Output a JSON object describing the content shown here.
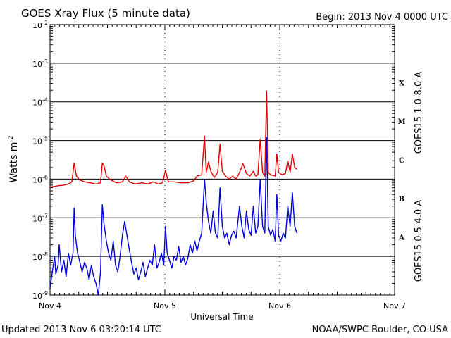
{
  "header": {
    "title": "GOES Xray Flux (5 minute data)",
    "begin": "Begin:  2013 Nov 4 0000 UTC"
  },
  "footer": {
    "updated": "Updated 2013 Nov  6 03:20:14 UTC",
    "source": "NOAA/SWPC Boulder, CO USA"
  },
  "chart_data": {
    "type": "line",
    "title": "GOES Xray Flux (5 minute data)",
    "xlabel": "Universal Time",
    "ylabel_base": "Watts m",
    "ylabel_exp": "-2",
    "y_scale": "log",
    "ylim": [
      1e-09,
      0.01
    ],
    "xlim": [
      0,
      3
    ],
    "x_ticks": [
      {
        "x": 0,
        "label": "Nov 4"
      },
      {
        "x": 1,
        "label": "Nov 5"
      },
      {
        "x": 2,
        "label": "Nov 6"
      },
      {
        "x": 3,
        "label": "Nov 7"
      }
    ],
    "y_ticks": [
      {
        "exp": -9,
        "base": "10",
        "sup": "-9"
      },
      {
        "exp": -8,
        "base": "10",
        "sup": "-8"
      },
      {
        "exp": -7,
        "base": "10",
        "sup": "-7"
      },
      {
        "exp": -6,
        "base": "10",
        "sup": "-6"
      },
      {
        "exp": -5,
        "base": "10",
        "sup": "-5"
      },
      {
        "exp": -4,
        "base": "10",
        "sup": "-4"
      },
      {
        "exp": -3,
        "base": "10",
        "sup": "-3"
      },
      {
        "exp": -2,
        "base": "10",
        "sup": "-2"
      }
    ],
    "grid": "horizontal lines at each decade",
    "flare_classes": [
      {
        "label": "A",
        "exp": -7.5
      },
      {
        "label": "B",
        "exp": -6.5
      },
      {
        "label": "C",
        "exp": -5.5
      },
      {
        "label": "M",
        "exp": -4.5
      },
      {
        "label": "X",
        "exp": -3.5
      }
    ],
    "series": [
      {
        "name": "GOES15 1.0-8.0 A",
        "color": "#e00000",
        "points": [
          [
            0.0,
            6.2e-07
          ],
          [
            0.04,
            6.5e-07
          ],
          [
            0.08,
            6.8e-07
          ],
          [
            0.12,
            7e-07
          ],
          [
            0.16,
            7.5e-07
          ],
          [
            0.19,
            8.5e-07
          ],
          [
            0.21,
            2.6e-06
          ],
          [
            0.23,
            1.2e-06
          ],
          [
            0.26,
            9.5e-07
          ],
          [
            0.3,
            8.5e-07
          ],
          [
            0.35,
            8e-07
          ],
          [
            0.4,
            7.5e-07
          ],
          [
            0.44,
            8e-07
          ],
          [
            0.455,
            2.6e-06
          ],
          [
            0.47,
            2.2e-06
          ],
          [
            0.49,
            1.2e-06
          ],
          [
            0.53,
            9.5e-07
          ],
          [
            0.58,
            8e-07
          ],
          [
            0.63,
            8.5e-07
          ],
          [
            0.66,
            1.2e-06
          ],
          [
            0.69,
            8.5e-07
          ],
          [
            0.74,
            7.5e-07
          ],
          [
            0.8,
            8e-07
          ],
          [
            0.85,
            7.5e-07
          ],
          [
            0.9,
            8.5e-07
          ],
          [
            0.94,
            7.5e-07
          ],
          [
            0.98,
            8e-07
          ],
          [
            1.005,
            1.7e-06
          ],
          [
            1.03,
            8.5e-07
          ],
          [
            1.08,
            8.5e-07
          ],
          [
            1.14,
            8e-07
          ],
          [
            1.2,
            8e-07
          ],
          [
            1.25,
            9e-07
          ],
          [
            1.28,
            1.2e-06
          ],
          [
            1.32,
            1.3e-06
          ],
          [
            1.345,
            1.3e-05
          ],
          [
            1.36,
            1.5e-06
          ],
          [
            1.38,
            2.8e-06
          ],
          [
            1.4,
            1.6e-06
          ],
          [
            1.43,
            1.1e-06
          ],
          [
            1.46,
            1.5e-06
          ],
          [
            1.48,
            8e-06
          ],
          [
            1.5,
            1.6e-06
          ],
          [
            1.53,
            1.2e-06
          ],
          [
            1.56,
            1e-06
          ],
          [
            1.59,
            1.2e-06
          ],
          [
            1.62,
            1e-06
          ],
          [
            1.65,
            1.5e-06
          ],
          [
            1.68,
            2.5e-06
          ],
          [
            1.71,
            1.4e-06
          ],
          [
            1.74,
            1.2e-06
          ],
          [
            1.77,
            1.6e-06
          ],
          [
            1.79,
            1.2e-06
          ],
          [
            1.81,
            1.3e-06
          ],
          [
            1.83,
            1.1e-05
          ],
          [
            1.85,
            1.5e-06
          ],
          [
            1.87,
            1.2e-06
          ],
          [
            1.885,
            0.00019
          ],
          [
            1.9,
            1.5e-06
          ],
          [
            1.92,
            1.3e-06
          ],
          [
            1.96,
            1.2e-06
          ],
          [
            1.975,
            4.5e-06
          ],
          [
            1.99,
            1.5e-06
          ],
          [
            2.02,
            1.3e-06
          ],
          [
            2.05,
            1.4e-06
          ],
          [
            2.07,
            3e-06
          ],
          [
            2.09,
            1.5e-06
          ],
          [
            2.11,
            4.5e-06
          ],
          [
            2.13,
            2e-06
          ],
          [
            2.15,
            1.8e-06
          ]
        ]
      },
      {
        "name": "GOES15 0.5-4.0 A",
        "color": "#0000d8",
        "points": [
          [
            0.0,
            1.5e-09
          ],
          [
            0.02,
            4e-09
          ],
          [
            0.04,
            1e-08
          ],
          [
            0.05,
            3.5e-09
          ],
          [
            0.07,
            6e-09
          ],
          [
            0.08,
            2e-08
          ],
          [
            0.1,
            4e-09
          ],
          [
            0.12,
            8e-09
          ],
          [
            0.14,
            3e-09
          ],
          [
            0.16,
            1.2e-08
          ],
          [
            0.18,
            6e-09
          ],
          [
            0.2,
            1.2e-08
          ],
          [
            0.21,
            1.8e-07
          ],
          [
            0.22,
            3.5e-08
          ],
          [
            0.24,
            1.2e-08
          ],
          [
            0.26,
            7e-09
          ],
          [
            0.28,
            4e-09
          ],
          [
            0.3,
            7e-09
          ],
          [
            0.32,
            5e-09
          ],
          [
            0.34,
            2.5e-09
          ],
          [
            0.36,
            6e-09
          ],
          [
            0.38,
            3e-09
          ],
          [
            0.4,
            2e-09
          ],
          [
            0.42,
            1e-09
          ],
          [
            0.44,
            4e-09
          ],
          [
            0.455,
            2.2e-07
          ],
          [
            0.47,
            7e-08
          ],
          [
            0.49,
            2.5e-08
          ],
          [
            0.51,
            1.2e-08
          ],
          [
            0.53,
            8e-09
          ],
          [
            0.55,
            2.5e-08
          ],
          [
            0.57,
            6e-09
          ],
          [
            0.59,
            4e-09
          ],
          [
            0.61,
            1e-08
          ],
          [
            0.63,
            3.5e-08
          ],
          [
            0.65,
            8e-08
          ],
          [
            0.67,
            3.5e-08
          ],
          [
            0.69,
            1.5e-08
          ],
          [
            0.71,
            7e-09
          ],
          [
            0.73,
            3.5e-09
          ],
          [
            0.75,
            5e-09
          ],
          [
            0.77,
            2.5e-09
          ],
          [
            0.79,
            4e-09
          ],
          [
            0.81,
            7e-09
          ],
          [
            0.83,
            3e-09
          ],
          [
            0.85,
            5e-09
          ],
          [
            0.87,
            8e-09
          ],
          [
            0.89,
            6e-09
          ],
          [
            0.91,
            2e-08
          ],
          [
            0.93,
            5e-09
          ],
          [
            0.95,
            7e-09
          ],
          [
            0.97,
            1.2e-08
          ],
          [
            0.99,
            6e-09
          ],
          [
            1.005,
            6e-08
          ],
          [
            1.02,
            1.2e-08
          ],
          [
            1.04,
            8e-09
          ],
          [
            1.06,
            5e-09
          ],
          [
            1.08,
            1e-08
          ],
          [
            1.1,
            8e-09
          ],
          [
            1.12,
            1.8e-08
          ],
          [
            1.14,
            7e-09
          ],
          [
            1.16,
            1e-08
          ],
          [
            1.18,
            6e-09
          ],
          [
            1.2,
            9e-09
          ],
          [
            1.22,
            2e-08
          ],
          [
            1.24,
            1.2e-08
          ],
          [
            1.26,
            2.5e-08
          ],
          [
            1.28,
            1.4e-08
          ],
          [
            1.3,
            2.5e-08
          ],
          [
            1.32,
            4e-08
          ],
          [
            1.345,
            1e-06
          ],
          [
            1.36,
            2.5e-07
          ],
          [
            1.38,
            8e-08
          ],
          [
            1.4,
            4e-08
          ],
          [
            1.42,
            1.5e-07
          ],
          [
            1.44,
            4e-08
          ],
          [
            1.46,
            3e-08
          ],
          [
            1.48,
            6e-07
          ],
          [
            1.5,
            6e-08
          ],
          [
            1.52,
            3e-08
          ],
          [
            1.54,
            4e-08
          ],
          [
            1.56,
            2e-08
          ],
          [
            1.58,
            3.5e-08
          ],
          [
            1.6,
            4.5e-08
          ],
          [
            1.62,
            3e-08
          ],
          [
            1.65,
            2e-07
          ],
          [
            1.67,
            6e-08
          ],
          [
            1.69,
            3e-08
          ],
          [
            1.71,
            1.5e-07
          ],
          [
            1.73,
            5e-08
          ],
          [
            1.75,
            3.5e-08
          ],
          [
            1.77,
            2e-07
          ],
          [
            1.79,
            4e-08
          ],
          [
            1.81,
            6e-08
          ],
          [
            1.83,
            1e-06
          ],
          [
            1.85,
            6e-08
          ],
          [
            1.87,
            4e-08
          ],
          [
            1.885,
            1.2e-05
          ],
          [
            1.9,
            6e-08
          ],
          [
            1.92,
            3.5e-08
          ],
          [
            1.94,
            5e-08
          ],
          [
            1.96,
            2.5e-08
          ],
          [
            1.975,
            4e-07
          ],
          [
            1.99,
            3.5e-08
          ],
          [
            2.01,
            2.5e-08
          ],
          [
            2.03,
            4e-08
          ],
          [
            2.05,
            3e-08
          ],
          [
            2.07,
            2e-07
          ],
          [
            2.09,
            6e-08
          ],
          [
            2.11,
            4.5e-07
          ],
          [
            2.13,
            6e-08
          ],
          [
            2.15,
            4e-08
          ]
        ]
      }
    ]
  }
}
